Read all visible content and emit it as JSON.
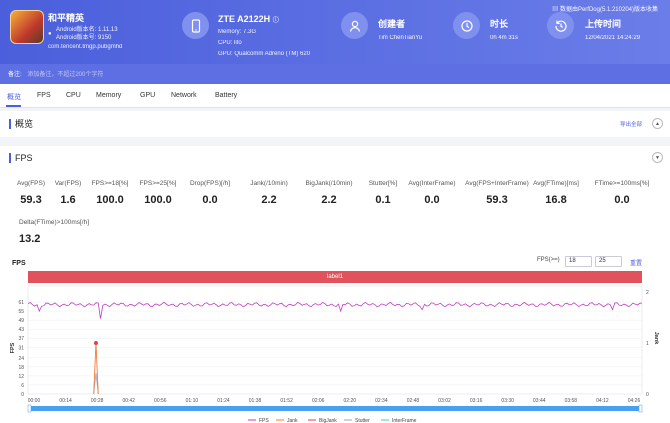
{
  "app": {
    "name": "和平精英",
    "android_version": "Android版本名: 1.11.13",
    "android_code": "Android版本号: 9150",
    "package": "com.tencent.tmgp.pubgmhd"
  },
  "device": {
    "model": "ZTE A2122H",
    "memory": "Memory: 7.3G",
    "cpu": "CPU: lito",
    "gpu": "GPU: Qualcomm Adreno (TM) 620"
  },
  "creator": {
    "title": "创建者",
    "value": "Tim ChenTianYu"
  },
  "duration": {
    "title": "时长",
    "value": "0h 4m 31s"
  },
  "upload": {
    "title": "上传时间",
    "value": "12/04/2021 14:24:29"
  },
  "version_text": "数据由PerfDog(5.1.210204)版本收集",
  "note": {
    "label": "备注:",
    "placeholder": "添加备注，不超过200个字符"
  },
  "tabs": [
    "概览",
    "FPS",
    "CPU",
    "Memory",
    "GPU",
    "Network",
    "Battery"
  ],
  "overview": {
    "title": "概览",
    "export": "导出全部"
  },
  "fps_section": {
    "title": "FPS"
  },
  "stats": [
    {
      "label": "Avg(FPS)",
      "value": "59.3"
    },
    {
      "label": "Var(FPS)",
      "value": "1.6"
    },
    {
      "label": "FPS>=18[%]",
      "value": "100.0"
    },
    {
      "label": "FPS>=25[%]",
      "value": "100.0"
    },
    {
      "label": "Drop(FPS)[/h]",
      "value": "0.0"
    },
    {
      "label": "Jank(/10min)",
      "value": "2.2"
    },
    {
      "label": "BigJank(/10min)",
      "value": "2.2"
    },
    {
      "label": "Stutter[%]",
      "value": "0.1"
    },
    {
      "label": "Avg(InterFrame)",
      "value": "0.0"
    },
    {
      "label": "Avg(FPS+InterFrame)",
      "value": "59.3"
    },
    {
      "label": "Avg(FTime)[ms]",
      "value": "16.8"
    },
    {
      "label": "FTime>=100ms[%]",
      "value": "0.0"
    },
    {
      "label": "Delta(FTime)>100ms[/h]",
      "value": "13.2"
    }
  ],
  "chart_controls": {
    "title": "FPS",
    "fps_ge": "FPS(>=)",
    "v1": "18",
    "v2": "25",
    "reset": "重置",
    "label": "label1"
  },
  "colors": {
    "accent": "#4b5fdc",
    "fps": "#c040c0",
    "jank": "#f07c3a",
    "bigjank": "#e04050",
    "stutter": "#9aa8c8",
    "interframe": "#40c8c8",
    "label": "#e2525c"
  },
  "chart_data": {
    "type": "line",
    "title": "",
    "ylabel": "FPS",
    "y2label": "Jank",
    "yticks": [
      0,
      6,
      12,
      18,
      24,
      31,
      37,
      43,
      49,
      55,
      61
    ],
    "y2ticks": [
      0,
      1,
      2
    ],
    "ylim": [
      0,
      65
    ],
    "y2lim": [
      0,
      2
    ],
    "xticks": [
      "00:00",
      "00:14",
      "00:28",
      "00:42",
      "00:56",
      "01:10",
      "01:24",
      "01:38",
      "01:52",
      "02:06",
      "02:20",
      "02:34",
      "02:48",
      "03:02",
      "03:16",
      "03:30",
      "03:44",
      "03:58",
      "04:12",
      "04:26"
    ],
    "x_range_seconds": [
      0,
      271
    ],
    "series": [
      {
        "name": "FPS",
        "baseline": 59.3,
        "dips": [
          {
            "t": 32,
            "v": 50
          },
          {
            "t": 5,
            "v": 55
          },
          {
            "t": 138,
            "v": 55
          },
          {
            "t": 174,
            "v": 56
          },
          {
            "t": 258,
            "v": 56
          }
        ]
      },
      {
        "name": "Jank",
        "events": [
          {
            "t": 30,
            "v": 1
          }
        ]
      },
      {
        "name": "BigJank",
        "events": [
          {
            "t": 30,
            "v": 1
          }
        ]
      },
      {
        "name": "Stutter",
        "events": [
          {
            "t": 30,
            "v": 14
          }
        ]
      },
      {
        "name": "InterFrame",
        "events": []
      }
    ],
    "legend": [
      "FPS",
      "Jank",
      "BigJank",
      "Stutter",
      "InterFrame"
    ],
    "legend_position": "bottom"
  }
}
